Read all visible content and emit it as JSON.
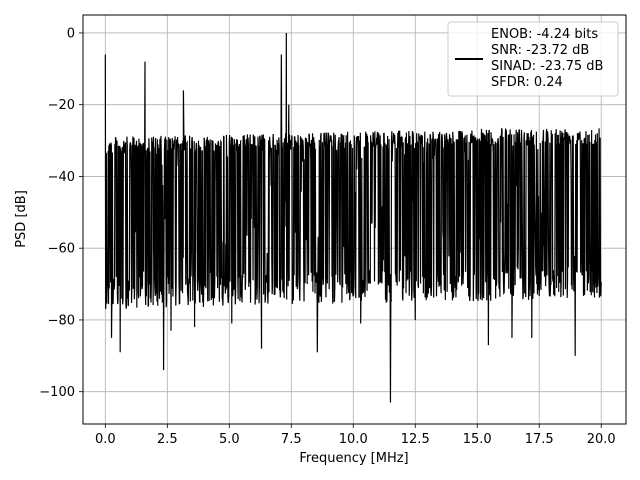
{
  "chart_data": {
    "type": "line",
    "title": "",
    "xlabel": "Frequency [MHz]",
    "ylabel": "PSD [dB]",
    "xlim": [
      -0.9,
      21.0
    ],
    "ylim": [
      -109,
      5
    ],
    "xticks": [
      0.0,
      2.5,
      5.0,
      7.5,
      10.0,
      12.5,
      15.0,
      17.5,
      20.0
    ],
    "xtick_labels": [
      "0.0",
      "2.5",
      "5.0",
      "7.5",
      "10.0",
      "12.5",
      "15.0",
      "17.5",
      "20.0"
    ],
    "yticks": [
      0,
      -20,
      -40,
      -60,
      -80,
      -100
    ],
    "ytick_labels": [
      "0",
      "−20",
      "−40",
      "−60",
      "−80",
      "−100"
    ],
    "grid": true,
    "legend_position": "top-right",
    "line_color": "#000000",
    "series": [
      {
        "name": "ENOB: -4.24 bits\nSNR: -23.72 dB\nSINAD: -23.75 dB\nSFDR: 0.24",
        "noise_floor_band": {
          "top_start": -29,
          "top_end": -26,
          "bottom_start": -68,
          "bottom_end": -65
        },
        "spikes": [
          {
            "x": 0.0,
            "y": -6
          },
          {
            "x": 1.6,
            "y": -8
          },
          {
            "x": 3.15,
            "y": -16
          },
          {
            "x": 7.1,
            "y": -6
          },
          {
            "x": 7.3,
            "y": 0
          },
          {
            "x": 7.4,
            "y": -20
          }
        ],
        "dips": [
          {
            "x": 0.25,
            "y": -85
          },
          {
            "x": 0.6,
            "y": -89
          },
          {
            "x": 2.35,
            "y": -94
          },
          {
            "x": 2.65,
            "y": -83
          },
          {
            "x": 3.6,
            "y": -82
          },
          {
            "x": 5.1,
            "y": -81
          },
          {
            "x": 6.3,
            "y": -88
          },
          {
            "x": 8.55,
            "y": -89
          },
          {
            "x": 10.3,
            "y": -81
          },
          {
            "x": 11.5,
            "y": -103
          },
          {
            "x": 12.5,
            "y": -80
          },
          {
            "x": 15.45,
            "y": -87
          },
          {
            "x": 16.4,
            "y": -85
          },
          {
            "x": 17.2,
            "y": -85
          },
          {
            "x": 18.95,
            "y": -90
          }
        ]
      }
    ]
  }
}
